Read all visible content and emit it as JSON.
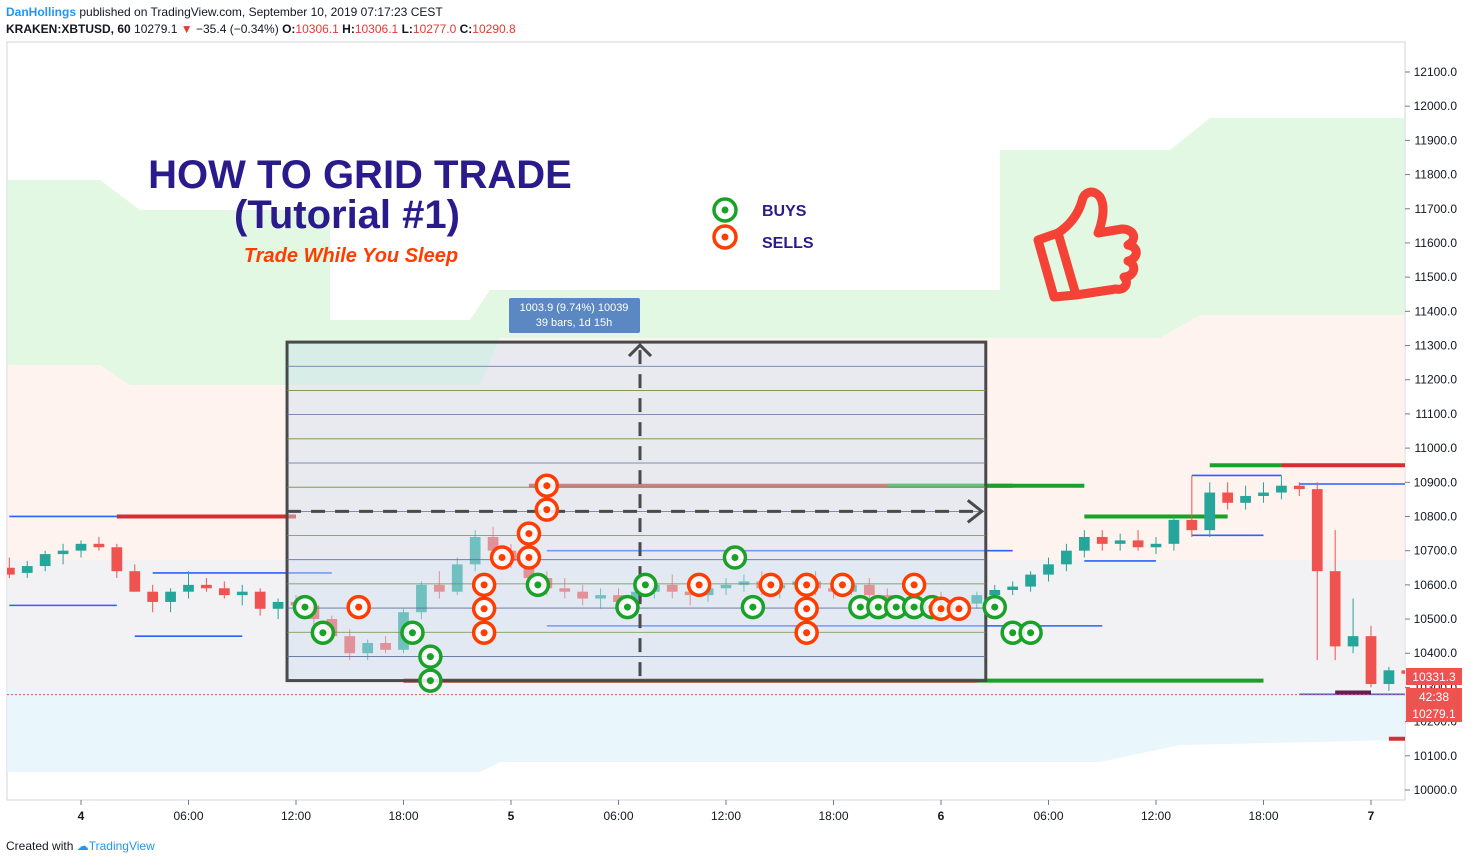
{
  "header": {
    "author": "DanHollings",
    "published_text": " published on TradingView.com, September 10, 2019 07:17:23 CEST",
    "symbol": "KRAKEN:XBTUSD, 60",
    "last": "10279.1",
    "change": "−35.4 (−0.34%)",
    "o_label": "O:",
    "o": "10306.1",
    "h_label": "H:",
    "h": "10306.1",
    "l_label": "L:",
    "l": "10277.0",
    "c_label": "C:",
    "c": "10290.8"
  },
  "footer": {
    "prefix": "Created with",
    "brand": "TradingView"
  },
  "annotations": {
    "title_line1": "HOW TO GRID TRADE",
    "title_line2": "(Tutorial #1)",
    "subtitle": "Trade While You Sleep",
    "legend_buys": "BUYS",
    "legend_sells": "SELLS",
    "measure_line1": "1003.9 (9.74%) 10039",
    "measure_line2": "39 bars, 1d 15h"
  },
  "price_labels": {
    "top": "10331.3",
    "countdown": "42:38",
    "last": "10279.1"
  },
  "colors": {
    "up": "#26a69a",
    "down": "#ef5350",
    "buy": "#1aa127",
    "sell": "#ff3d00",
    "title": "#2a1b8c",
    "grid_box": "#4a4a4a",
    "thumb": "#f44336"
  },
  "chart_data": {
    "type": "candlestick",
    "y_axis": {
      "min": 9950,
      "max": 12150,
      "ticks": [
        "12100.0",
        "12000.0",
        "11900.0",
        "11800.0",
        "11700.0",
        "11600.0",
        "11500.0",
        "11400.0",
        "11300.0",
        "11200.0",
        "11100.0",
        "11000.0",
        "10900.0",
        "10800.0",
        "10700.0",
        "10600.0",
        "10500.0",
        "10400.0",
        "10300.0",
        "10200.0",
        "10100.0",
        "10000.0"
      ]
    },
    "x_axis": {
      "bars_per_day": 24,
      "ticks": [
        {
          "label": "4",
          "bar": 0
        },
        {
          "label": "06:00",
          "bar": 6
        },
        {
          "label": "12:00",
          "bar": 12
        },
        {
          "label": "18:00",
          "bar": 18
        },
        {
          "label": "5",
          "bar": 24
        },
        {
          "label": "06:00",
          "bar": 30
        },
        {
          "label": "12:00",
          "bar": 36
        },
        {
          "label": "18:00",
          "bar": 42
        },
        {
          "label": "6",
          "bar": 48
        },
        {
          "label": "06:00",
          "bar": 54
        },
        {
          "label": "12:00",
          "bar": 60
        },
        {
          "label": "18:00",
          "bar": 66
        },
        {
          "label": "7",
          "bar": 72
        }
      ]
    },
    "candles_start_bar": -4,
    "candles": [
      [
        10650,
        10680,
        10620,
        10630
      ],
      [
        10635,
        10670,
        10620,
        10655
      ],
      [
        10655,
        10700,
        10640,
        10690
      ],
      [
        10690,
        10720,
        10660,
        10700
      ],
      [
        10700,
        10730,
        10680,
        10720
      ],
      [
        10720,
        10740,
        10700,
        10710
      ],
      [
        10710,
        10720,
        10620,
        10640
      ],
      [
        10640,
        10660,
        10580,
        10580
      ],
      [
        10580,
        10600,
        10520,
        10550
      ],
      [
        10550,
        10590,
        10520,
        10580
      ],
      [
        10580,
        10640,
        10560,
        10600
      ],
      [
        10600,
        10620,
        10580,
        10590
      ],
      [
        10590,
        10610,
        10560,
        10570
      ],
      [
        10570,
        10600,
        10540,
        10580
      ],
      [
        10580,
        10590,
        10510,
        10530
      ],
      [
        10530,
        10560,
        10500,
        10550
      ],
      [
        10550,
        10570,
        10520,
        10540
      ],
      [
        10540,
        10560,
        10480,
        10500
      ],
      [
        10500,
        10510,
        10440,
        10450
      ],
      [
        10450,
        10470,
        10380,
        10400
      ],
      [
        10400,
        10440,
        10380,
        10430
      ],
      [
        10430,
        10450,
        10400,
        10410
      ],
      [
        10410,
        10530,
        10400,
        10520
      ],
      [
        10520,
        10610,
        10500,
        10600
      ],
      [
        10600,
        10640,
        10560,
        10580
      ],
      [
        10580,
        10680,
        10570,
        10660
      ],
      [
        10660,
        10760,
        10640,
        10740
      ],
      [
        10740,
        10770,
        10680,
        10700
      ],
      [
        10700,
        10720,
        10650,
        10670
      ],
      [
        10670,
        10690,
        10600,
        10620
      ],
      [
        10620,
        10640,
        10570,
        10590
      ],
      [
        10590,
        10620,
        10560,
        10580
      ],
      [
        10580,
        10600,
        10540,
        10560
      ],
      [
        10560,
        10590,
        10530,
        10570
      ],
      [
        10570,
        10590,
        10540,
        10550
      ],
      [
        10550,
        10590,
        10540,
        10580
      ],
      [
        10580,
        10620,
        10560,
        10600
      ],
      [
        10600,
        10630,
        10560,
        10580
      ],
      [
        10580,
        10610,
        10540,
        10570
      ],
      [
        10570,
        10600,
        10550,
        10590
      ],
      [
        10590,
        10620,
        10570,
        10600
      ],
      [
        10600,
        10630,
        10580,
        10610
      ],
      [
        10610,
        10640,
        10570,
        10590
      ],
      [
        10590,
        10610,
        10560,
        10600
      ],
      [
        10600,
        10620,
        10580,
        10610
      ],
      [
        10610,
        10640,
        10570,
        10590
      ],
      [
        10590,
        10610,
        10560,
        10580
      ],
      [
        10580,
        10610,
        10570,
        10600
      ],
      [
        10600,
        10620,
        10560,
        10570
      ],
      [
        10570,
        10590,
        10530,
        10540
      ],
      [
        10540,
        10560,
        10520,
        10530
      ],
      [
        10530,
        10560,
        10520,
        10550
      ],
      [
        10550,
        10580,
        10530,
        10540
      ],
      [
        10540,
        10560,
        10530,
        10545
      ],
      [
        10545,
        10580,
        10530,
        10570
      ],
      [
        10570,
        10600,
        10550,
        10585
      ],
      [
        10585,
        10610,
        10570,
        10595
      ],
      [
        10595,
        10640,
        10580,
        10630
      ],
      [
        10630,
        10680,
        10610,
        10660
      ],
      [
        10660,
        10720,
        10640,
        10700
      ],
      [
        10700,
        10760,
        10680,
        10740
      ],
      [
        10740,
        10760,
        10700,
        10720
      ],
      [
        10720,
        10750,
        10700,
        10730
      ],
      [
        10730,
        10760,
        10700,
        10710
      ],
      [
        10710,
        10740,
        10690,
        10720
      ],
      [
        10720,
        10800,
        10700,
        10790
      ],
      [
        10790,
        10920,
        10740,
        10760
      ],
      [
        10760,
        10900,
        10740,
        10870
      ],
      [
        10870,
        10900,
        10820,
        10840
      ],
      [
        10840,
        10890,
        10820,
        10860
      ],
      [
        10860,
        10900,
        10840,
        10870
      ],
      [
        10870,
        10920,
        10850,
        10890
      ],
      [
        10890,
        10900,
        10860,
        10880
      ],
      [
        10880,
        10900,
        10380,
        10640
      ],
      [
        10640,
        10760,
        10380,
        10420
      ],
      [
        10420,
        10560,
        10400,
        10450
      ],
      [
        10450,
        10480,
        10300,
        10310
      ],
      [
        10310,
        10360,
        10290,
        10350
      ],
      [
        10350,
        10410,
        10300,
        10340
      ],
      [
        10340,
        10360,
        10280,
        10330
      ],
      [
        10330,
        10350,
        10290,
        10300
      ]
    ],
    "grid_box": {
      "start_bar": 11.5,
      "end_bar": 50.5,
      "low": 10320,
      "high": 11310
    },
    "measure": {
      "change": "1003.9 (9.74%) 10039",
      "span": "39 bars, 1d 15h"
    },
    "buys": [
      [
        12.5,
        10535
      ],
      [
        13.5,
        10460
      ],
      [
        18.5,
        10460
      ],
      [
        19.5,
        10390
      ],
      [
        19.5,
        10320
      ],
      [
        25.5,
        10600
      ],
      [
        30.5,
        10535
      ],
      [
        31.5,
        10600
      ],
      [
        36.5,
        10680
      ],
      [
        37.5,
        10535
      ],
      [
        43.5,
        10535
      ],
      [
        44.5,
        10535
      ],
      [
        45.5,
        10535
      ],
      [
        46.5,
        10535
      ],
      [
        47.5,
        10535
      ],
      [
        51,
        10535
      ],
      [
        52,
        10460
      ],
      [
        53,
        10460
      ]
    ],
    "sells": [
      [
        15.5,
        10535
      ],
      [
        22.5,
        10530
      ],
      [
        22.5,
        10600
      ],
      [
        22.5,
        10460
      ],
      [
        23.5,
        10680
      ],
      [
        25,
        10750
      ],
      [
        25,
        10680
      ],
      [
        26,
        10820
      ],
      [
        26,
        10890
      ],
      [
        34.5,
        10600
      ],
      [
        38.5,
        10600
      ],
      [
        40.5,
        10600
      ],
      [
        40.5,
        10530
      ],
      [
        40.5,
        10460
      ],
      [
        42.5,
        10600
      ],
      [
        46.5,
        10600
      ],
      [
        48,
        10530
      ],
      [
        49,
        10530
      ]
    ]
  }
}
